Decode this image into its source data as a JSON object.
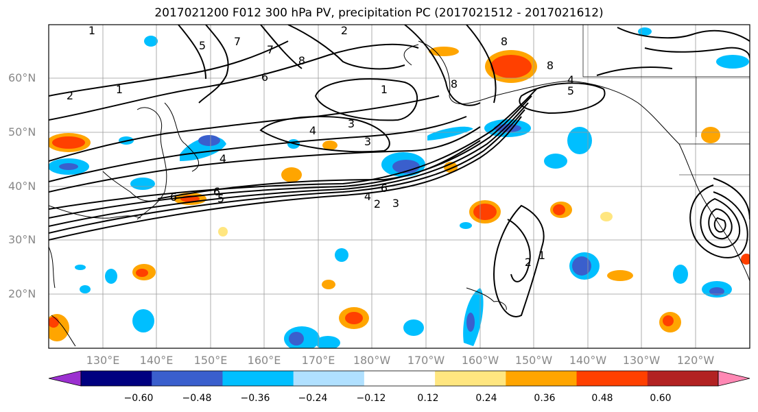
{
  "title": "2017021200 F012 300 hPa PV, precipitation PC (2017021512 - 2017021612)",
  "lat_labels": [
    "60°N",
    "50°N",
    "40°N",
    "30°N",
    "20°N"
  ],
  "lon_labels": [
    "130°E",
    "140°E",
    "150°E",
    "160°E",
    "170°E",
    "180°W",
    "170°W",
    "160°W",
    "150°W",
    "140°W",
    "130°W",
    "120°W"
  ],
  "colorbar": {
    "ticks": [
      "−0.60",
      "−0.48",
      "−0.36",
      "−0.24",
      "−0.12",
      "0.12",
      "0.24",
      "0.36",
      "0.48",
      "0.60"
    ],
    "colors": [
      "#9b30d0",
      "#000080",
      "#3a5fcd",
      "#00bfff",
      "#b0e0ff",
      "#ffffff",
      "#ffe680",
      "#ffa500",
      "#ff4000",
      "#b22222",
      "#ff88b4"
    ]
  },
  "contour_labels": [
    "1",
    "1",
    "1",
    "1",
    "2",
    "2",
    "2",
    "2",
    "3",
    "3",
    "3",
    "4",
    "4",
    "4",
    "4",
    "5",
    "5",
    "5",
    "6",
    "6",
    "6",
    "6",
    "7",
    "7",
    "8",
    "8",
    "8",
    "8"
  ],
  "anomaly_patches": [
    "positive",
    "negative"
  ]
}
